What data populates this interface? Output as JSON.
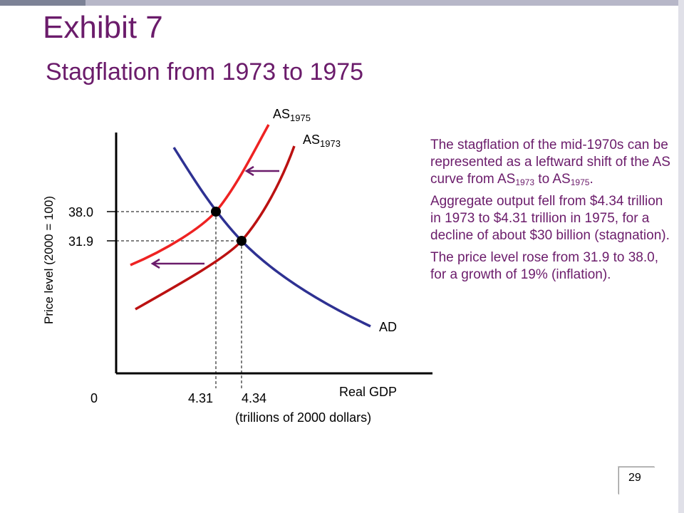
{
  "slide": {
    "title": "Exhibit 7",
    "subtitle": "Stagflation from 1973 to 1975",
    "page_number": "29"
  },
  "graph": {
    "y_axis_label": "Price level (2000 = 100)",
    "x_axis_label": "Real GDP",
    "x_axis_units": "(trillions of 2000 dollars)",
    "origin_label": "0",
    "y_ticks": [
      "38.0",
      "31.9"
    ],
    "x_ticks": [
      "4.31",
      "4.34"
    ],
    "curves": {
      "as_1975": {
        "base": "AS",
        "sub": "1975",
        "color": "#ee2222"
      },
      "as_1973": {
        "base": "AS",
        "sub": "1973",
        "color": "#bb1111"
      },
      "ad": {
        "label": "AD",
        "color": "#2e3192"
      }
    },
    "equilibria": [
      {
        "price": 38.0,
        "output": 4.31
      },
      {
        "price": 31.9,
        "output": 4.34
      }
    ],
    "shift_arrows_color": "#6b1c6b"
  },
  "explanation": {
    "para1_text": "The stagflation of the mid-1970s can be represented as a leftward shift of the AS curve from AS",
    "para1_sub1": "1973",
    "para1_mid": " to AS",
    "para1_sub2": "1975",
    "para1_end": ".",
    "para2": "Aggregate output fell from $4.34 trillion in 1973 to $4.31 trillion in 1975, for a decline of about $30 billion (stagnation).",
    "para3": "The price level rose from 31.9 to 38.0, for a growth of 19% (inflation)."
  }
}
